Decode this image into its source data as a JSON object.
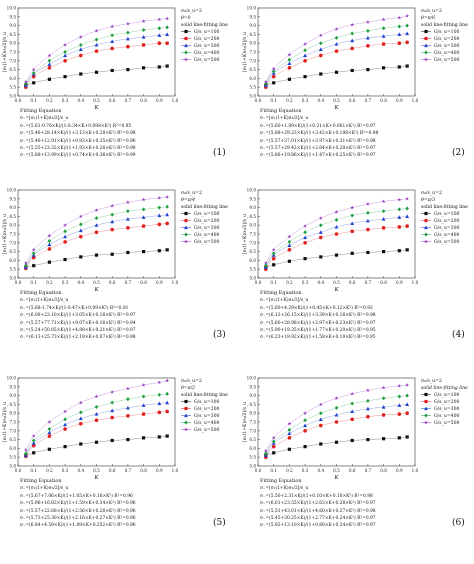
{
  "chart_data": [
    {
      "type": "scatter",
      "panel_label": "(1)",
      "ylabel": "[σ₁(1+K)σ₃/2]/s_u",
      "xlabel": "K",
      "xlim": [
        0.0,
        1.0
      ],
      "ylim": [
        5.0,
        10.0
      ],
      "xticks": [
        "0.0",
        "0.1",
        "0.2",
        "0.3",
        "0.4",
        "0.5",
        "0.6",
        "0.7",
        "0.8",
        "0.9",
        "1.0"
      ],
      "yticks": [
        "5.0",
        "5.5",
        "6.0",
        "6.5",
        "7.0",
        "7.5",
        "8.0",
        "8.5",
        "9.0",
        "9.5",
        "10.0"
      ],
      "annotation": [
        "σ₀/s_u=2",
        "θ=0",
        "solid line:fitting line"
      ],
      "legend_position": "right",
      "x": [
        0.05,
        0.1,
        0.2,
        0.3,
        0.4,
        0.5,
        0.6,
        0.7,
        0.8,
        0.9,
        0.95
      ],
      "series": [
        {
          "name": "G/s_u=100",
          "color": "#111111",
          "marker": "square",
          "values": [
            5.6,
            5.75,
            5.95,
            6.1,
            6.25,
            6.35,
            6.45,
            6.5,
            6.6,
            6.65,
            6.7
          ],
          "fit_a": 5.61,
          "fit_b": 0.76,
          "fit_c": 1.0,
          "fit_d": 0.34,
          "fit_e": 0.098
        },
        {
          "name": "G/s_u=200",
          "color": "#e02020",
          "marker": "circle",
          "values": [
            5.5,
            6.1,
            6.6,
            7.0,
            7.3,
            7.55,
            7.7,
            7.8,
            7.9,
            8.0,
            8.0
          ],
          "fit_a": 5.46,
          "fit_b": 28.14,
          "fit_c": 1.0,
          "fit_d": 3.13,
          "fit_e": 0.28
        },
        {
          "name": "G/s_u=300",
          "color": "#2040d0",
          "marker": "triangle",
          "values": [
            5.6,
            6.25,
            6.8,
            7.3,
            7.65,
            7.9,
            8.1,
            8.25,
            8.35,
            8.45,
            8.5
          ],
          "fit_a": 5.46,
          "fit_b": 12.91,
          "fit_c": 1.0,
          "fit_d": 0.93,
          "fit_e": 0.35
        },
        {
          "name": "G/s_u=400",
          "color": "#20a040",
          "marker": "diamond",
          "values": [
            5.7,
            6.3,
            7.0,
            7.5,
            7.9,
            8.2,
            8.45,
            8.6,
            8.75,
            8.85,
            8.9
          ],
          "fit_a": 5.55,
          "fit_b": 23.32,
          "fit_c": 1.0,
          "fit_d": 1.93,
          "fit_e": 0.26
        },
        {
          "name": "G/s_u=500",
          "color": "#9030c0",
          "marker": "star",
          "values": [
            5.8,
            6.5,
            7.3,
            7.9,
            8.35,
            8.7,
            8.95,
            9.1,
            9.25,
            9.35,
            9.4
          ],
          "fit_a": 5.88,
          "fit_b": 13.99,
          "fit_c": 1.0,
          "fit_d": 0.74,
          "fit_e": 0.36
        }
      ],
      "equations": {
        "title": "Fitting Equation",
        "lines": [
          "σ₋=[σ₁(1+K)σ₃/2]/s_u",
          "σ₋=(5.61-0.76×K)/(1-0.34×K+0.098×K²) R²=0.95",
          "σ₋=(5.46+28.14×K)/(1+3.13×K+0.28×K²) R²=0.98",
          "σ₋=(5.46+12.91×K)/(1+0.93×K+0.35×K²) R²=0.96",
          "σ₋=(5.55+23.32×K)/(1+1.93×K+0.26×K²) R²=0.98",
          "σ₋=(5.88+13.99×K)/(1+0.74×K+0.36×K²) R²=0.99"
        ]
      }
    },
    {
      "type": "scatter",
      "panel_label": "(2)",
      "ylabel": "[σ₁(1+K)σ₃/2]/s_u",
      "xlabel": "K",
      "xlim": [
        0.0,
        1.0
      ],
      "ylim": [
        5.0,
        10.0
      ],
      "xticks": [
        "0.0",
        "0.1",
        "0.2",
        "0.3",
        "0.4",
        "0.5",
        "0.6",
        "0.7",
        "0.8",
        "0.9",
        "1.0"
      ],
      "yticks": [
        "5.0",
        "5.5",
        "6.0",
        "6.5",
        "7.0",
        "7.5",
        "8.0",
        "8.5",
        "9.0",
        "9.5",
        "10.0"
      ],
      "annotation": [
        "σ₀/s_u=2",
        "θ=π/6",
        "solid line:fitting line"
      ],
      "legend_position": "right",
      "x": [
        0.05,
        0.1,
        0.2,
        0.3,
        0.4,
        0.5,
        0.6,
        0.7,
        0.8,
        0.9,
        0.95
      ],
      "series": [
        {
          "name": "G/s_u=100",
          "color": "#111111",
          "marker": "square",
          "values": [
            5.6,
            5.75,
            5.95,
            6.1,
            6.25,
            6.35,
            6.45,
            6.5,
            6.6,
            6.65,
            6.7
          ]
        },
        {
          "name": "G/s_u=200",
          "color": "#e02020",
          "marker": "circle",
          "values": [
            5.5,
            6.1,
            6.6,
            7.0,
            7.3,
            7.55,
            7.7,
            7.85,
            7.95,
            8.0,
            8.05
          ]
        },
        {
          "name": "G/s_u=300",
          "color": "#2040d0",
          "marker": "triangle",
          "values": [
            5.6,
            6.3,
            6.85,
            7.3,
            7.65,
            7.95,
            8.15,
            8.3,
            8.4,
            8.5,
            8.55
          ]
        },
        {
          "name": "G/s_u=400",
          "color": "#20a040",
          "marker": "diamond",
          "values": [
            5.7,
            6.4,
            7.05,
            7.6,
            8.0,
            8.3,
            8.55,
            8.7,
            8.85,
            8.95,
            9.0
          ]
        },
        {
          "name": "G/s_u=500",
          "color": "#9030c0",
          "marker": "star",
          "values": [
            5.8,
            6.55,
            7.35,
            7.95,
            8.45,
            8.8,
            9.05,
            9.2,
            9.35,
            9.45,
            9.55
          ]
        }
      ],
      "equations": {
        "title": "Fitting Equation",
        "lines": [
          "σ₋=[σ₁(1+K)σ₃/2]/s_u",
          "σ₋=(5.60+1.89×K)/(1+0.21×K+0.061×K²) R²=0.97",
          "σ₋=(5.88+29.23×K)/(1+3.42×K+0.198×K²) R²=0.98",
          "σ₋=(5.57+37.01×K)/(1+3.97×K+0.31×K²) R²=0.98",
          "σ₋=(5.57+29.42×K)/(1+2.64×K+0.20×K²) R²=0.97",
          "σ₋=(5.86+19.86×K)/(1+1.47×K+0.25×K²) R²=0.97"
        ]
      }
    },
    {
      "type": "scatter",
      "panel_label": "(3)",
      "ylabel": "[σ₁(1+K)σ₃/2]/s_u",
      "xlabel": "K",
      "xlim": [
        0.0,
        1.0
      ],
      "ylim": [
        5.0,
        10.0
      ],
      "xticks": [
        "0.0",
        "0.1",
        "0.2",
        "0.3",
        "0.4",
        "0.5",
        "0.6",
        "0.7",
        "0.8",
        "0.9",
        "1.0"
      ],
      "yticks": [
        "5.0",
        "5.5",
        "6.0",
        "6.5",
        "7.0",
        "7.5",
        "8.0",
        "8.5",
        "9.0",
        "9.5",
        "10.0"
      ],
      "annotation": [
        "σ₀/s_u=2",
        "θ=π/4",
        "solid line:fitting line"
      ],
      "legend_position": "right",
      "x": [
        0.05,
        0.1,
        0.2,
        0.3,
        0.4,
        0.5,
        0.6,
        0.7,
        0.8,
        0.9,
        0.95
      ],
      "series": [
        {
          "name": "G/s_u=100",
          "color": "#111111",
          "marker": "square",
          "values": [
            5.6,
            5.7,
            5.9,
            6.05,
            6.2,
            6.3,
            6.35,
            6.45,
            6.5,
            6.55,
            6.6
          ]
        },
        {
          "name": "G/s_u=200",
          "color": "#e02020",
          "marker": "circle",
          "values": [
            5.55,
            6.15,
            6.65,
            7.05,
            7.35,
            7.6,
            7.75,
            7.85,
            7.95,
            8.05,
            8.1
          ]
        },
        {
          "name": "G/s_u=300",
          "color": "#2040d0",
          "marker": "triangle",
          "values": [
            5.6,
            6.3,
            6.9,
            7.35,
            7.7,
            8.0,
            8.2,
            8.35,
            8.45,
            8.55,
            8.6
          ]
        },
        {
          "name": "G/s_u=400",
          "color": "#20a040",
          "marker": "diamond",
          "values": [
            5.7,
            6.4,
            7.1,
            7.65,
            8.05,
            8.4,
            8.6,
            8.8,
            8.9,
            9.0,
            9.05
          ]
        },
        {
          "name": "G/s_u=500",
          "color": "#9030c0",
          "marker": "star",
          "values": [
            5.85,
            6.6,
            7.4,
            8.0,
            8.5,
            8.85,
            9.1,
            9.3,
            9.45,
            9.55,
            9.6
          ]
        }
      ],
      "equations": {
        "title": "Fitting Equation",
        "lines": [
          "σ₋=[σ₁(1+K)σ₃/2]/s_u",
          "σ₋=(5.68-1.74×K)/(1-0.47×K+0.09×K²) R²=0.91",
          "σ₋=(6.08+23.10×K)/(1+3.05×K+0.16×K²) R²=0.97",
          "σ₋=(5.57+77.71×K)/(1+9.07×K+0.16×K²) R²=0.94",
          "σ₋=(5.24+50.85×K)/(1+4.88×K+0.21×K²) R²=0.97",
          "σ₋=(6.13+25.73×K)/(1+2.19×K+0.07×K²) R²=0.98"
        ]
      }
    },
    {
      "type": "scatter",
      "panel_label": "(4)",
      "ylabel": "[σ₁(1+K)σ₃/2]/s_u",
      "xlabel": "K",
      "xlim": [
        0.0,
        1.0
      ],
      "ylim": [
        5.0,
        10.0
      ],
      "xticks": [
        "0.0",
        "0.1",
        "0.2",
        "0.3",
        "0.4",
        "0.5",
        "0.6",
        "0.7",
        "0.8",
        "0.9",
        "1.0"
      ],
      "yticks": [
        "5.0",
        "5.5",
        "6.0",
        "6.5",
        "7.0",
        "7.5",
        "8.0",
        "8.5",
        "9.0",
        "9.5",
        "10.0"
      ],
      "annotation": [
        "σ₀/s_u=2",
        "θ=π/3",
        "solid line:fitting line"
      ],
      "legend_position": "right",
      "x": [
        0.05,
        0.1,
        0.2,
        0.3,
        0.4,
        0.5,
        0.6,
        0.7,
        0.8,
        0.9,
        0.95
      ],
      "series": [
        {
          "name": "G/s_u=100",
          "color": "#111111",
          "marker": "square",
          "values": [
            5.6,
            5.75,
            5.95,
            6.1,
            6.2,
            6.3,
            6.4,
            6.45,
            6.5,
            6.55,
            6.6
          ]
        },
        {
          "name": "G/s_u=200",
          "color": "#e02020",
          "marker": "circle",
          "values": [
            5.5,
            6.1,
            6.6,
            7.0,
            7.3,
            7.5,
            7.65,
            7.75,
            7.85,
            7.9,
            7.95
          ]
        },
        {
          "name": "G/s_u=300",
          "color": "#2040d0",
          "marker": "triangle",
          "values": [
            5.6,
            6.3,
            6.85,
            7.3,
            7.6,
            7.9,
            8.1,
            8.25,
            8.35,
            8.45,
            8.5
          ]
        },
        {
          "name": "G/s_u=400",
          "color": "#20a040",
          "marker": "diamond",
          "values": [
            5.7,
            6.4,
            7.05,
            7.6,
            8.0,
            8.3,
            8.55,
            8.7,
            8.8,
            8.9,
            8.95
          ]
        },
        {
          "name": "G/s_u=500",
          "color": "#9030c0",
          "marker": "star",
          "values": [
            5.85,
            6.6,
            7.35,
            7.95,
            8.4,
            8.75,
            9.0,
            9.2,
            9.35,
            9.45,
            9.5
          ]
        }
      ],
      "equations": {
        "title": "Fitting Equation",
        "lines": [
          "σ₋=[σ₁(1+K)σ₃/2]/s_u",
          "σ₋=(5.60+4.29×K)/(1+0.45×K+0.12×K²) R²=0.92",
          "σ₋=(6.12+26.15×K)/(1+3.39×K+0.16×K²) R²=0.98",
          "σ₋=(5.60+28.98×K)/(1+2.97×K+0.23×K²) R²=0.97",
          "σ₋=(5.90+19.35×K)/(1+1.77×K+0.20×K²) R²=0.95",
          "σ₋=(6.23+19.92×K)/(1+1.58×K+0.10×K²) R²=0.95"
        ]
      }
    },
    {
      "type": "scatter",
      "panel_label": "(5)",
      "ylabel": "[σ₁(1+K)σ₃/2]/s_u",
      "xlabel": "K",
      "xlim": [
        0.0,
        1.0
      ],
      "ylim": [
        5.0,
        10.0
      ],
      "xticks": [
        "0.0",
        "0.1",
        "0.2",
        "0.3",
        "0.4",
        "0.5",
        "0.6",
        "0.7",
        "0.8",
        "0.9",
        "1.0"
      ],
      "yticks": [
        "5.0",
        "5.5",
        "6.0",
        "6.5",
        "7.0",
        "7.5",
        "8.0",
        "8.5",
        "9.0",
        "9.5",
        "10.0"
      ],
      "annotation": [
        "σ₀/s_u=2",
        "θ=π/2",
        "solid line:fitting line"
      ],
      "legend_position": "right",
      "x": [
        0.05,
        0.1,
        0.2,
        0.3,
        0.4,
        0.5,
        0.6,
        0.7,
        0.8,
        0.9,
        0.95
      ],
      "series": [
        {
          "name": "G/s_u=100",
          "color": "#111111",
          "marker": "square",
          "values": [
            5.6,
            5.75,
            5.95,
            6.1,
            6.25,
            6.35,
            6.45,
            6.5,
            6.6,
            6.65,
            6.7
          ]
        },
        {
          "name": "G/s_u=200",
          "color": "#e02020",
          "marker": "circle",
          "values": [
            5.55,
            6.15,
            6.7,
            7.1,
            7.4,
            7.6,
            7.75,
            7.85,
            7.95,
            8.05,
            8.1
          ]
        },
        {
          "name": "G/s_u=300",
          "color": "#2040d0",
          "marker": "triangle",
          "values": [
            5.6,
            6.3,
            6.9,
            7.35,
            7.7,
            7.95,
            8.15,
            8.3,
            8.45,
            8.55,
            8.6
          ]
        },
        {
          "name": "G/s_u=400",
          "color": "#20a040",
          "marker": "diamond",
          "values": [
            5.7,
            6.45,
            7.1,
            7.65,
            8.05,
            8.35,
            8.6,
            8.8,
            8.95,
            9.05,
            9.1
          ]
        },
        {
          "name": "G/s_u=500",
          "color": "#9030c0",
          "marker": "star",
          "values": [
            5.9,
            6.7,
            7.5,
            8.1,
            8.6,
            8.95,
            9.2,
            9.4,
            9.6,
            9.75,
            9.85
          ]
        }
      ],
      "equations": {
        "title": "Fitting Equation",
        "lines": [
          "σ₋=[σ₁(1+K)σ₃/2]/s_u",
          "σ₋=(5.67+7.06×K)/(1+1.05×K+0.16×K²) R²=0.96",
          "σ₋=(5.96+16.83×K)/(1+1.59×K+0.34×K²) R²=0.96",
          "σ₋=(5.57+22.68×K)/(1+2.56×K+0.26×K²) R²=0.96",
          "σ₋=(5.73+25.30×K)/(1+2.16×K+0.27×K²) R²=0.96",
          "σ₋=(6.84+4.59×K)/(1+1.09×K+0.252×K²) R²=0.96"
        ]
      }
    },
    {
      "type": "scatter",
      "panel_label": "(6)",
      "ylabel": "[σ₁(1+K)σ₃/2]/s_u",
      "xlabel": "K",
      "xlim": [
        0.0,
        1.0
      ],
      "ylim": [
        5.0,
        10.0
      ],
      "xticks": [
        "0.0",
        "0.1",
        "0.2",
        "0.3",
        "0.4",
        "0.5",
        "0.6",
        "0.7",
        "0.8",
        "0.9",
        "1.0"
      ],
      "yticks": [
        "5.0",
        "5.5",
        "6.0",
        "6.5",
        "7.0",
        "7.5",
        "8.0",
        "8.5",
        "9.0",
        "9.5",
        "10.0"
      ],
      "annotation": [
        "σ₀/s_u=2",
        "solid line:fitting line"
      ],
      "legend_position": "right",
      "x": [
        0.05,
        0.1,
        0.2,
        0.3,
        0.4,
        0.5,
        0.6,
        0.7,
        0.8,
        0.9,
        0.95
      ],
      "series": [
        {
          "name": "G/s_u=100",
          "color": "#111111",
          "marker": "square",
          "values": [
            5.6,
            5.75,
            5.95,
            6.1,
            6.25,
            6.35,
            6.45,
            6.5,
            6.55,
            6.6,
            6.65
          ]
        },
        {
          "name": "G/s_u=200",
          "color": "#e02020",
          "marker": "circle",
          "values": [
            5.5,
            6.1,
            6.6,
            7.0,
            7.3,
            7.5,
            7.65,
            7.8,
            7.9,
            7.95,
            8.0
          ]
        },
        {
          "name": "G/s_u=300",
          "color": "#2040d0",
          "marker": "triangle",
          "values": [
            5.6,
            6.3,
            6.85,
            7.3,
            7.65,
            7.9,
            8.1,
            8.25,
            8.35,
            8.45,
            8.5
          ]
        },
        {
          "name": "G/s_u=400",
          "color": "#20a040",
          "marker": "diamond",
          "values": [
            5.7,
            6.4,
            7.05,
            7.6,
            8.0,
            8.3,
            8.55,
            8.7,
            8.85,
            8.95,
            9.0
          ]
        },
        {
          "name": "G/s_u=500",
          "color": "#9030c0",
          "marker": "star",
          "values": [
            5.85,
            6.6,
            7.4,
            8.0,
            8.5,
            8.85,
            9.1,
            9.3,
            9.45,
            9.55,
            9.6
          ]
        }
      ],
      "equations": {
        "title": "Fitting Equation",
        "lines": [
          "σ₋=[σ₁(1+K)σ₃/2]/s_u",
          "σ₋=(5.50+2.31×K)/(1+0.10×K+0.10×K²) R²=0.98",
          "σ₋=(6.01+23.55×K)/(1+2.63×K+0.28×K²) R²=0.97",
          "σ₋=(5.51+43.01×K)/(1+4.60×K+0.27×K²) R²=0.98",
          "σ₋=(5.45+30.25×K)/(1+2.77×K+0.24×K²) R²=0.97",
          "σ₋=(5.92+13.10×K)/(1+0.80×K+0.24×K²) R²=0.97"
        ]
      }
    }
  ]
}
